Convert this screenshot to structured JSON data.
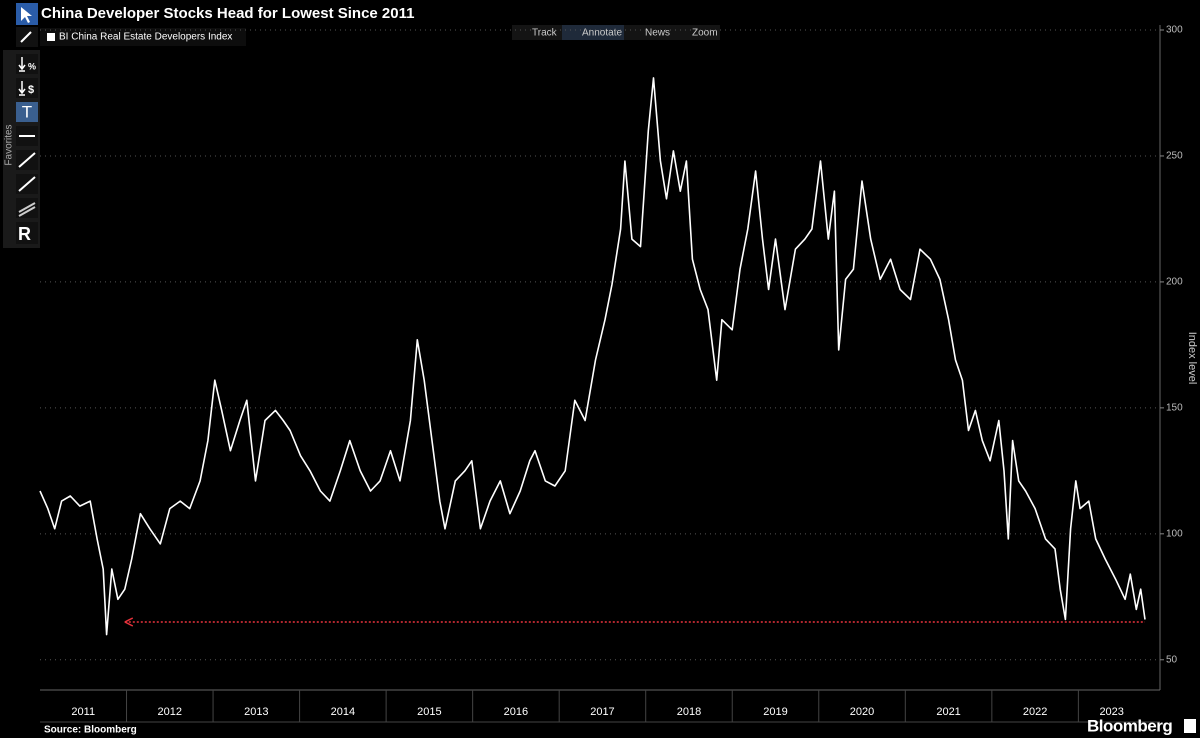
{
  "chart_data": {
    "type": "line",
    "title": "China Developer Stocks Head for Lowest Since 2011",
    "ylabel": "Index level",
    "source": "Source: Bloomberg",
    "brand": "Bloomberg",
    "toolbar": [
      "Track",
      "Annotate",
      "News",
      "Zoom"
    ],
    "sidebar_label": "Favorites",
    "tool_glyphs": [
      "%",
      "$",
      "T",
      "R"
    ],
    "xlim": [
      2011,
      2023.77
    ],
    "xticks": [
      2011,
      2012,
      2013,
      2014,
      2015,
      2016,
      2017,
      2018,
      2019,
      2020,
      2021,
      2022,
      2023
    ],
    "ylim": [
      38,
      300
    ],
    "yticks": [
      50,
      100,
      150,
      200,
      250,
      300
    ],
    "grid": true,
    "x": [
      2011.0,
      2011.09,
      2011.17,
      2011.25,
      2011.35,
      2011.46,
      2011.58,
      2011.66,
      2011.73,
      2011.77,
      2011.83,
      2011.9,
      2011.98,
      2012.06,
      2012.16,
      2012.27,
      2012.39,
      2012.5,
      2012.62,
      2012.73,
      2012.85,
      2012.94,
      2013.02,
      2013.1,
      2013.2,
      2013.31,
      2013.39,
      2013.49,
      2013.6,
      2013.72,
      2013.81,
      2013.89,
      2014.01,
      2014.12,
      2014.24,
      2014.35,
      2014.47,
      2014.58,
      2014.7,
      2014.82,
      2014.93,
      2015.05,
      2015.16,
      2015.28,
      2015.36,
      2015.44,
      2015.53,
      2015.62,
      2015.68,
      2015.8,
      2015.91,
      2015.99,
      2016.09,
      2016.2,
      2016.32,
      2016.43,
      2016.55,
      2016.66,
      2016.72,
      2016.84,
      2016.95,
      2017.07,
      2017.18,
      2017.3,
      2017.42,
      2017.53,
      2017.61,
      2017.71,
      2017.76,
      2017.84,
      2017.94,
      2018.03,
      2018.09,
      2018.17,
      2018.24,
      2018.32,
      2018.4,
      2018.47,
      2018.54,
      2018.63,
      2018.72,
      2018.82,
      2018.88,
      2019.0,
      2019.09,
      2019.18,
      2019.27,
      2019.35,
      2019.42,
      2019.5,
      2019.61,
      2019.73,
      2019.84,
      2019.92,
      2020.02,
      2020.11,
      2020.18,
      2020.23,
      2020.31,
      2020.4,
      2020.5,
      2020.6,
      2020.71,
      2020.83,
      2020.94,
      2021.06,
      2021.17,
      2021.29,
      2021.4,
      2021.5,
      2021.58,
      2021.66,
      2021.73,
      2021.81,
      2021.89,
      2021.98,
      2022.08,
      2022.14,
      2022.19,
      2022.24,
      2022.31,
      2022.39,
      2022.5,
      2022.62,
      2022.73,
      2022.79,
      2022.85,
      2022.91,
      2022.97,
      2023.02,
      2023.12,
      2023.2,
      2023.31,
      2023.43,
      2023.54,
      2023.6,
      2023.67,
      2023.72,
      2023.77
    ],
    "series": [
      {
        "name": "BI China Real Estate Developers Index",
        "color": "#ffffff",
        "values": [
          117,
          110,
          102,
          113,
          115,
          111,
          113,
          98,
          86,
          60,
          86,
          74,
          78,
          90,
          108,
          102,
          96,
          110,
          113,
          110,
          121,
          137,
          161,
          149,
          133,
          145,
          153,
          121,
          145,
          149,
          145,
          141,
          131,
          125,
          117,
          113,
          125,
          137,
          125,
          117,
          121,
          133,
          121,
          145,
          177,
          161,
          137,
          113,
          102,
          121,
          125,
          129,
          102,
          113,
          121,
          108,
          117,
          129,
          133,
          121,
          119,
          125,
          153,
          145,
          169,
          185,
          199,
          221,
          248,
          217,
          214,
          260,
          281,
          248,
          233,
          252,
          236,
          248,
          209,
          197,
          189,
          161,
          185,
          181,
          205,
          221,
          244,
          217,
          197,
          217,
          189,
          213,
          217,
          221,
          248,
          217,
          236,
          173,
          201,
          205,
          240,
          217,
          201,
          209,
          197,
          193,
          213,
          209,
          201,
          185,
          169,
          161,
          141,
          149,
          137,
          129,
          145,
          125,
          98,
          137,
          121,
          117,
          110,
          98,
          94,
          78,
          66,
          102,
          121,
          110,
          113,
          98,
          90,
          82,
          74,
          84,
          70,
          78,
          66
        ]
      }
    ],
    "annotations": [
      {
        "y": 65,
        "x": [
          2011.98,
          2023.77
        ],
        "color": "#e8323c"
      }
    ]
  }
}
